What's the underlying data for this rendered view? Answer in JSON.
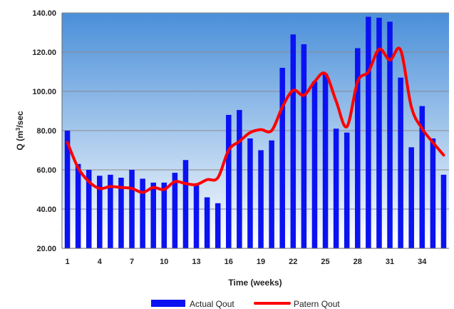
{
  "chart_data": {
    "type": "bar",
    "xlabel": "Time (weeks)",
    "ylabel_main": "Q (m",
    "ylabel_sup": "3",
    "ylabel_end": "/sec",
    "ylim": [
      20,
      140
    ],
    "yticks": [
      "20.00",
      "40.00",
      "60.00",
      "80.00",
      "100.00",
      "120.00",
      "140.00"
    ],
    "xticks": [
      "1",
      "4",
      "7",
      "10",
      "13",
      "16",
      "19",
      "22",
      "25",
      "28",
      "31",
      "34"
    ],
    "weeks": [
      1,
      2,
      3,
      4,
      5,
      6,
      7,
      8,
      9,
      10,
      11,
      12,
      13,
      14,
      15,
      16,
      17,
      18,
      19,
      20,
      21,
      22,
      23,
      24,
      25,
      26,
      27,
      28,
      29,
      30,
      31,
      32,
      33,
      34,
      35,
      36
    ],
    "series": [
      {
        "name": "Actual  Qout",
        "kind": "bar",
        "color": "#0b12f2",
        "values": [
          80,
          63,
          60,
          57,
          57.5,
          56,
          60,
          55.5,
          53.5,
          53.5,
          58.5,
          65,
          53,
          46,
          43,
          88,
          90.5,
          76,
          70,
          75,
          112,
          129,
          124,
          105,
          109,
          81,
          79,
          122,
          138,
          137.5,
          135.5,
          107,
          71.5,
          92.5,
          76,
          57.5
        ]
      },
      {
        "name": "Patern  Qout",
        "kind": "line",
        "color": "#ff0000",
        "values": [
          74,
          61,
          54,
          50.5,
          51.5,
          51,
          50.5,
          48.5,
          51,
          50,
          54,
          53,
          52.5,
          55,
          56,
          70,
          74.5,
          79,
          80.5,
          80,
          92,
          100.5,
          98,
          105,
          109,
          95,
          82,
          105,
          110,
          121.5,
          116,
          121,
          92,
          81,
          74,
          67.5
        ]
      }
    ],
    "grid": true,
    "legend_position": "bottom"
  }
}
